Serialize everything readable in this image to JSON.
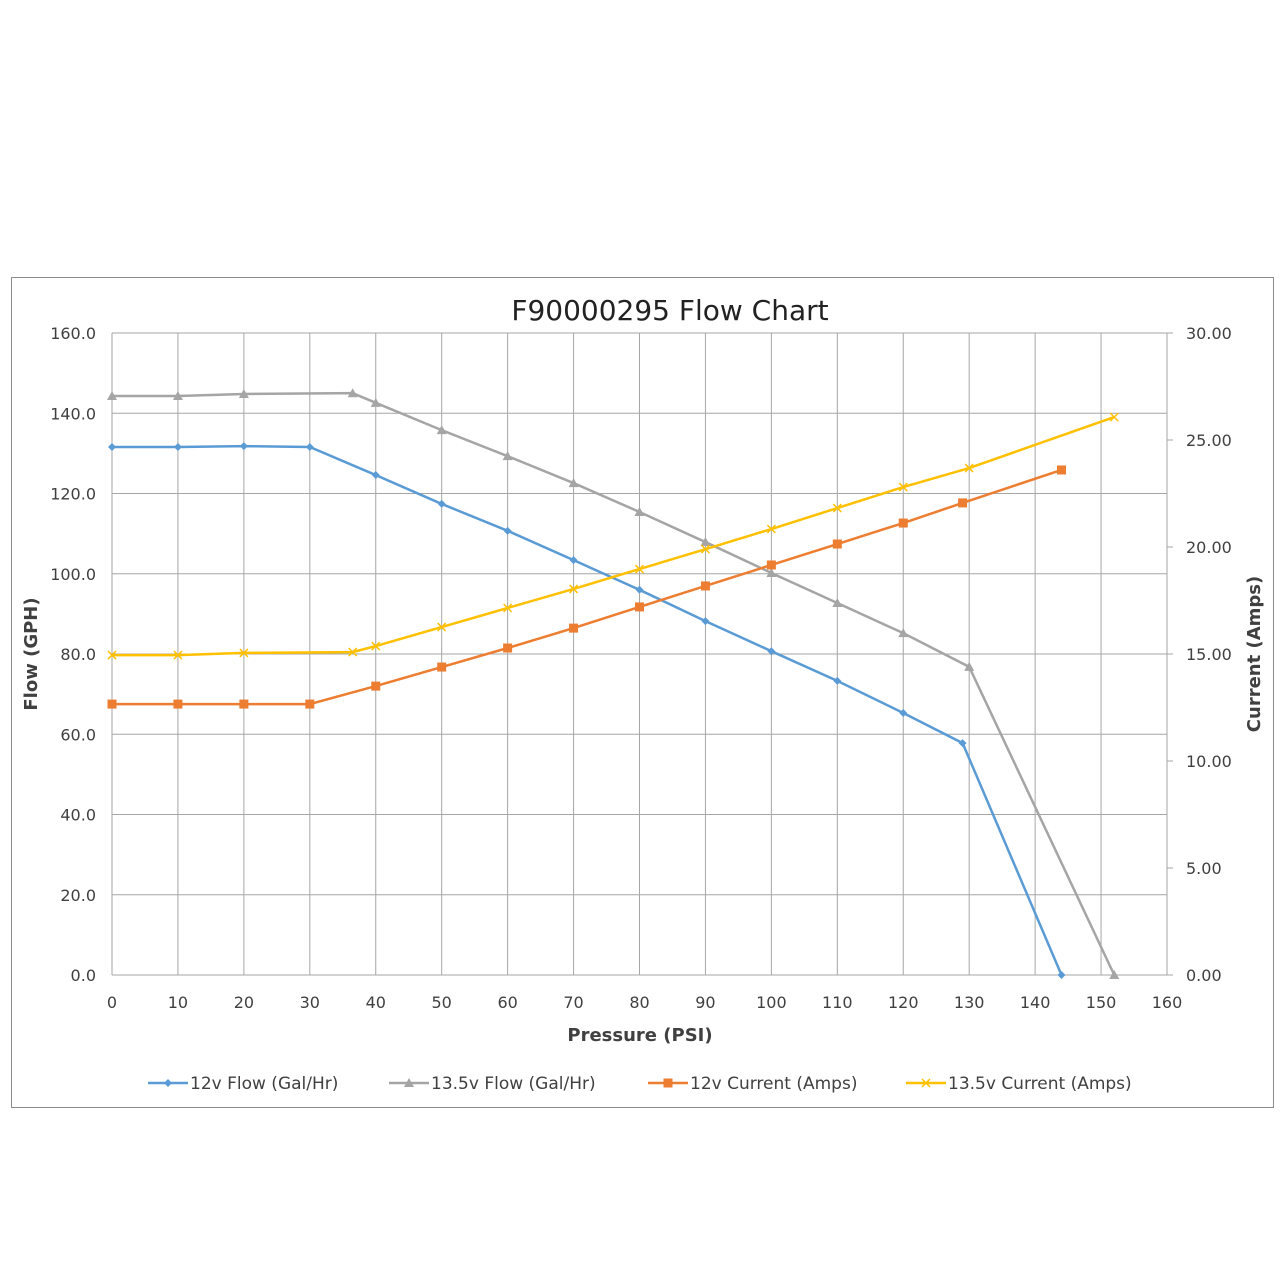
{
  "chart_data": {
    "type": "line",
    "title": "F90000295  Flow Chart",
    "xlabel": "Pressure (PSI)",
    "ylabel": "Flow (GPH)",
    "y2label": "Current (Amps)",
    "xlim": [
      0,
      160
    ],
    "ylim": [
      0,
      160
    ],
    "y2lim": [
      0,
      30
    ],
    "xticks": [
      "0",
      "10",
      "20",
      "30",
      "40",
      "50",
      "60",
      "70",
      "80",
      "90",
      "100",
      "110",
      "120",
      "130",
      "140",
      "150",
      "160"
    ],
    "yticks": [
      "0.0",
      "20.0",
      "40.0",
      "60.0",
      "80.0",
      "100.0",
      "120.0",
      "140.0",
      "160.0"
    ],
    "y2ticks": [
      "0.00",
      "5.00",
      "10.00",
      "15.00",
      "20.00",
      "25.00",
      "30.00"
    ],
    "grid": true,
    "legend_position": "bottom",
    "series": [
      {
        "name": "12v Flow (Gal/Hr)",
        "axis": "left",
        "color": "#5B9BD5",
        "marker": "diamond",
        "x": [
          0,
          10,
          20,
          30,
          40,
          50,
          60,
          70,
          80,
          90,
          100,
          110,
          120,
          129,
          144
        ],
        "y": [
          131.6,
          131.6,
          131.8,
          131.6,
          124.6,
          117.4,
          110.7,
          103.4,
          96.0,
          88.2,
          80.7,
          73.3,
          65.3,
          57.8,
          0.0
        ]
      },
      {
        "name": "13.5v Flow (Gal/Hr)",
        "axis": "left",
        "color": "#A5A5A5",
        "marker": "triangle",
        "x": [
          0,
          10,
          20,
          36.5,
          40,
          50,
          60,
          70,
          80,
          90,
          100,
          110,
          120,
          130,
          152
        ],
        "y": [
          144.3,
          144.3,
          144.8,
          145.0,
          142.6,
          135.8,
          129.3,
          122.6,
          115.4,
          107.9,
          100.2,
          92.7,
          85.2,
          76.8,
          0.0
        ]
      },
      {
        "name": "12v Current (Amps)",
        "axis": "right",
        "color": "#ED7D31",
        "marker": "square",
        "x": [
          0,
          10,
          20,
          30,
          40,
          50,
          60,
          70,
          80,
          90,
          100,
          110,
          120,
          129,
          144
        ],
        "y": [
          12.66,
          12.66,
          12.66,
          12.66,
          13.5,
          14.39,
          15.28,
          16.21,
          17.2,
          18.18,
          19.16,
          20.14,
          21.12,
          22.06,
          23.6
        ]
      },
      {
        "name": "13.5v Current (Amps)",
        "axis": "right",
        "color": "#FFC000",
        "marker": "x",
        "x": [
          0,
          10,
          20,
          36.5,
          40,
          50,
          60,
          70,
          80,
          90,
          100,
          110,
          120,
          130,
          152
        ],
        "y": [
          14.95,
          14.95,
          15.05,
          15.09,
          15.37,
          16.26,
          17.15,
          18.04,
          18.97,
          19.9,
          20.84,
          21.82,
          22.8,
          23.69,
          26.07
        ]
      }
    ]
  }
}
